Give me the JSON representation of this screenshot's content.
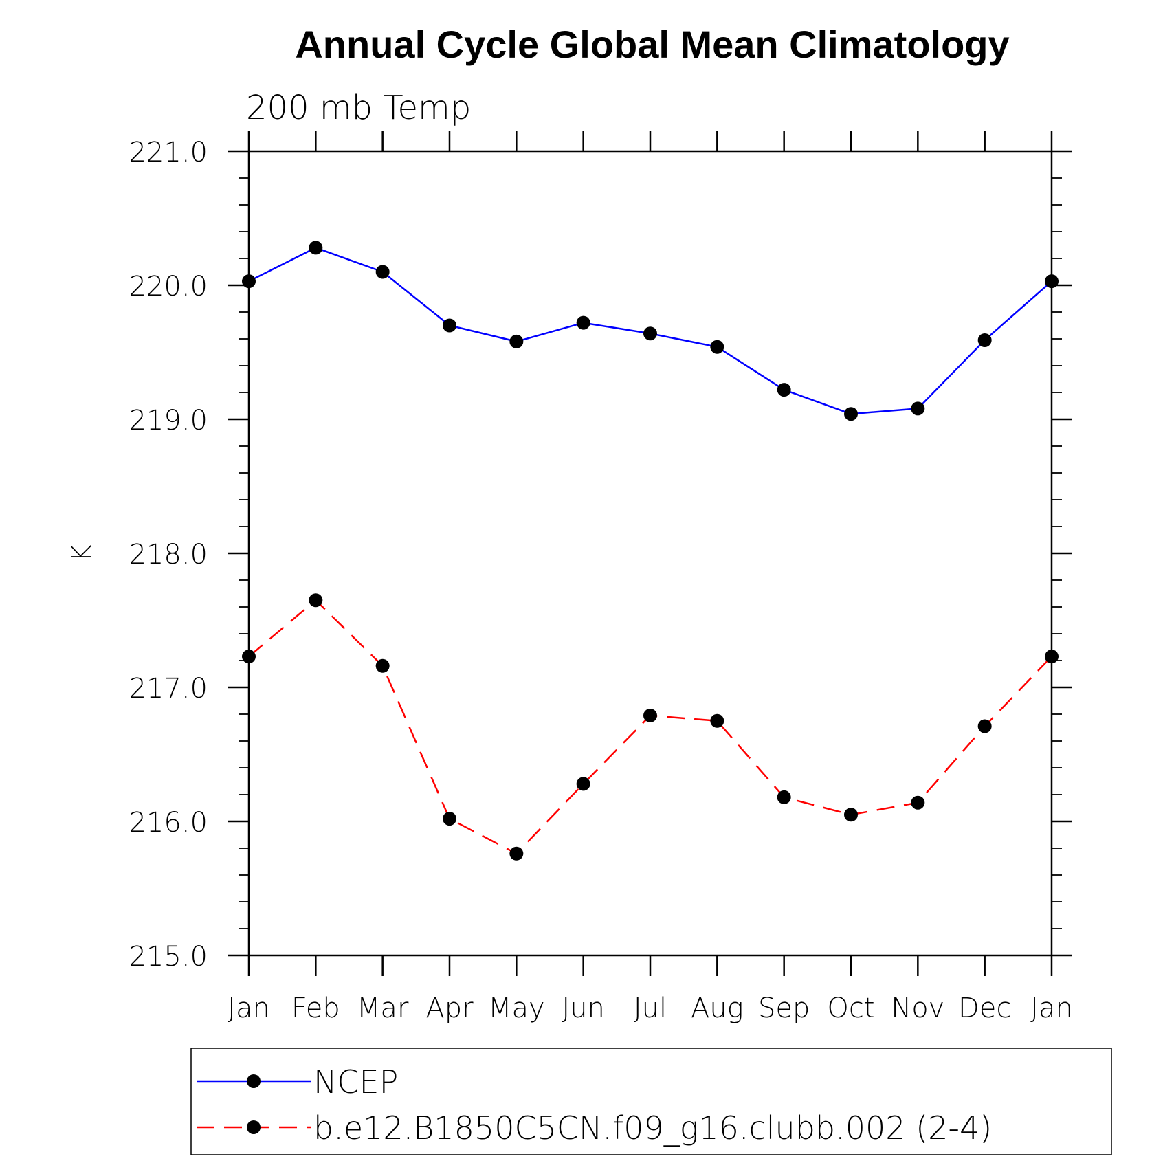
{
  "chart_data": {
    "type": "line",
    "title": "Annual Cycle Global Mean Climatology",
    "subtitle": "200 mb Temp",
    "xlabel": "",
    "ylabel": "K",
    "categories": [
      "Jan",
      "Feb",
      "Mar",
      "Apr",
      "May",
      "Jun",
      "Jul",
      "Aug",
      "Sep",
      "Oct",
      "Nov",
      "Dec",
      "Jan"
    ],
    "ylim": [
      215.0,
      221.0
    ],
    "y_ticks": [
      "215.0",
      "216.0",
      "217.0",
      "218.0",
      "219.0",
      "220.0",
      "221.0"
    ],
    "y_minor_step": 0.2,
    "grid": false,
    "legend_position": "bottom",
    "series": [
      {
        "name": "NCEP",
        "color": "#0000ff",
        "line_style": "solid",
        "marker": "filled-circle",
        "values": [
          220.03,
          220.28,
          220.1,
          219.7,
          219.58,
          219.72,
          219.64,
          219.54,
          219.22,
          219.04,
          219.08,
          219.59,
          220.03
        ]
      },
      {
        "name": "b.e12.B1850C5CN.f09_g16.clubb.002 (2-4)",
        "color": "#ff0000",
        "line_style": "dashed",
        "marker": "filled-circle",
        "values": [
          217.23,
          217.65,
          217.16,
          216.02,
          215.76,
          216.28,
          216.79,
          216.75,
          216.18,
          216.05,
          216.14,
          216.71,
          217.23
        ]
      }
    ]
  }
}
